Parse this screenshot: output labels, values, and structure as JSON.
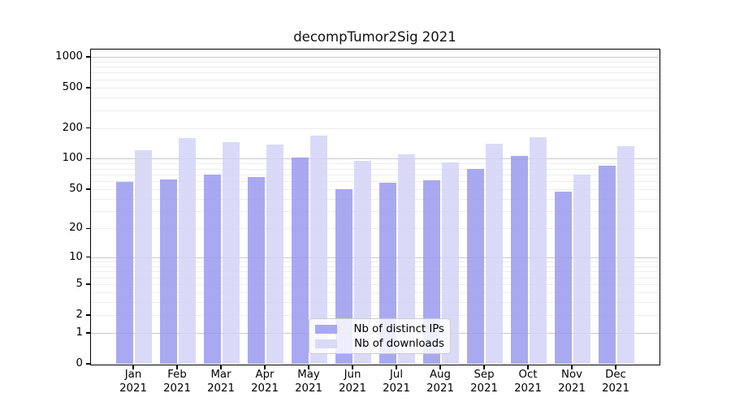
{
  "figure": {
    "title": "decompTumor2Sig 2021"
  },
  "chart_data": {
    "type": "bar",
    "title": "decompTumor2Sig 2021",
    "xlabel": "",
    "ylabel": "",
    "categories": [
      "Jan 2021",
      "Feb 2021",
      "Mar 2021",
      "Apr 2021",
      "May 2021",
      "Jun 2021",
      "Jul 2021",
      "Aug 2021",
      "Sep 2021",
      "Oct 2021",
      "Nov 2021",
      "Dec 2021"
    ],
    "series": [
      {
        "name": "Nb of distinct IPs",
        "color": "#a9a9f2",
        "values": [
          59,
          62,
          70,
          66,
          102,
          50,
          58,
          61,
          79,
          106,
          47,
          86
        ]
      },
      {
        "name": "Nb of downloads",
        "color": "#dadaf8",
        "values": [
          122,
          160,
          147,
          139,
          168,
          96,
          111,
          92,
          140,
          163,
          70,
          132
        ]
      }
    ],
    "yticks": [
      1000,
      500,
      200,
      100,
      50,
      20,
      10,
      5,
      2,
      1,
      0
    ],
    "yscale": "log1p",
    "ylim": [
      0,
      1000
    ],
    "grid": "both",
    "grid_major_color": "#c9c9c9",
    "grid_minor_color": "#ededed",
    "legend_position": "lower center",
    "axis_color": "#000000",
    "background_color": "#ffffff"
  }
}
